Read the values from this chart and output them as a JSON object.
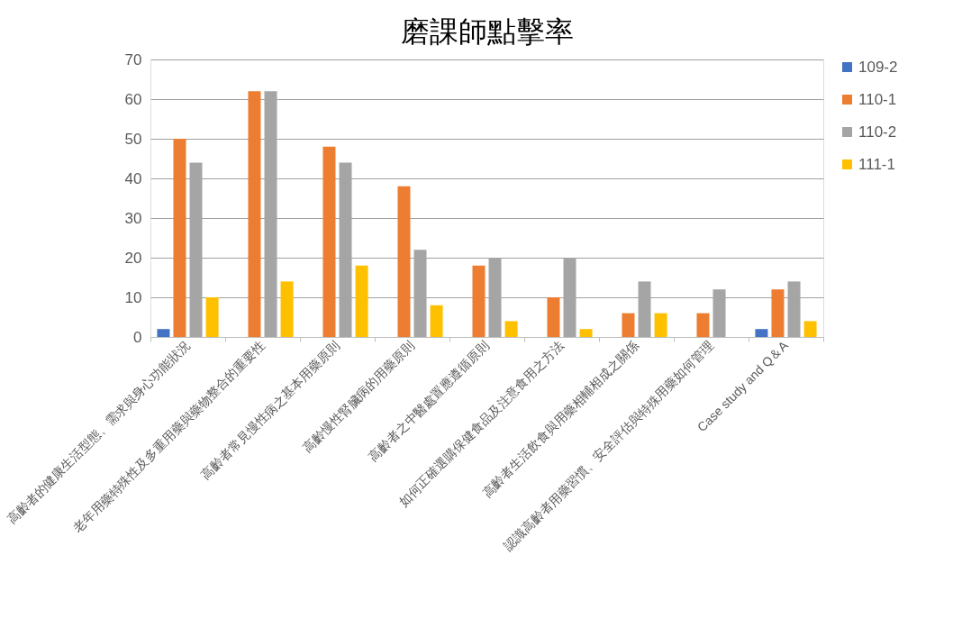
{
  "chart_data": {
    "type": "bar",
    "title": "磨課師點擊率",
    "categories": [
      "高齡者的健康生活型態、需求與身心功能狀況",
      "老年用藥特殊性及多重用藥與藥物整合的重要性",
      "高齡者常見慢性病之基本用藥原則",
      "高齡慢性腎臟病的用藥原則",
      "高齡者之中醫處置應遵循原則",
      "如何正確選購保健食品及注意食用之方法",
      "高齡者生活飲食與用藥相輔相成之關係",
      "認識高齡者用藥習慣、安全評估與特殊用藥如何管理",
      "Case study and Q＆A"
    ],
    "series": [
      {
        "name": "109-2",
        "color": "#4472c4",
        "values": [
          2,
          0,
          0,
          0,
          0,
          0,
          0,
          0,
          2
        ]
      },
      {
        "name": "110-1",
        "color": "#ed7d31",
        "values": [
          50,
          62,
          48,
          38,
          18,
          10,
          6,
          6,
          12
        ]
      },
      {
        "name": "110-2",
        "color": "#a5a5a5",
        "values": [
          44,
          62,
          44,
          22,
          20,
          20,
          14,
          12,
          14
        ]
      },
      {
        "name": "111-1",
        "color": "#ffc000",
        "values": [
          10,
          14,
          18,
          8,
          4,
          2,
          6,
          0,
          4
        ]
      }
    ],
    "ylim": [
      0,
      70
    ],
    "yticks": [
      0,
      10,
      20,
      30,
      40,
      50,
      60,
      70
    ],
    "grid": "y",
    "legend": "right"
  }
}
